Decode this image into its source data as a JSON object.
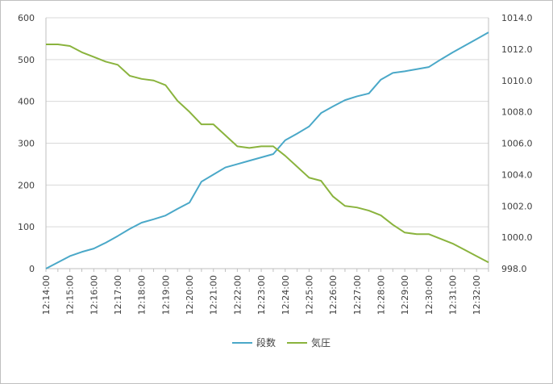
{
  "chart_data": {
    "type": "line",
    "x": [
      "12:14:00",
      "12:14:30",
      "12:15:00",
      "12:15:30",
      "12:16:00",
      "12:16:30",
      "12:17:00",
      "12:17:30",
      "12:18:00",
      "12:18:30",
      "12:19:00",
      "12:19:30",
      "12:20:00",
      "12:20:30",
      "12:21:00",
      "12:21:30",
      "12:22:00",
      "12:22:30",
      "12:23:00",
      "12:23:30",
      "12:24:00",
      "12:24:30",
      "12:25:00",
      "12:25:30",
      "12:26:00",
      "12:26:30",
      "12:27:00",
      "12:27:30",
      "12:28:00",
      "12:28:30",
      "12:29:00",
      "12:29:30",
      "12:30:00",
      "12:30:30",
      "12:31:00",
      "12:31:30",
      "12:32:00",
      "12:32:30"
    ],
    "x_tick_labels": [
      "12:14:00",
      "12:15:00",
      "12:16:00",
      "12:17:00",
      "12:18:00",
      "12:19:00",
      "12:20:00",
      "12:21:00",
      "12:22:00",
      "12:23:00",
      "12:24:00",
      "12:25:00",
      "12:26:00",
      "12:27:00",
      "12:28:00",
      "12:29:00",
      "12:30:00",
      "12:31:00",
      "12:32:00"
    ],
    "series": [
      {
        "name": "段数",
        "axis": "left",
        "color": "#4aa8c8",
        "values": [
          0,
          15,
          30,
          40,
          48,
          62,
          78,
          95,
          110,
          118,
          127,
          143,
          158,
          208,
          225,
          242,
          250,
          258,
          266,
          274,
          307,
          323,
          340,
          372,
          388,
          403,
          412,
          419,
          452,
          468,
          472,
          477,
          482,
          500,
          517,
          533,
          549,
          565
        ]
      },
      {
        "name": "気圧",
        "axis": "right",
        "color": "#8ab33d",
        "values": [
          1012.3,
          1012.3,
          1012.2,
          1011.8,
          1011.5,
          1011.2,
          1011.0,
          1010.3,
          1010.1,
          1010.0,
          1009.7,
          1008.7,
          1008.0,
          1007.2,
          1007.2,
          1006.5,
          1005.8,
          1005.7,
          1005.8,
          1005.8,
          1005.2,
          1004.5,
          1003.8,
          1003.6,
          1002.6,
          1002.0,
          1001.9,
          1001.7,
          1001.4,
          1000.8,
          1000.3,
          1000.2,
          1000.2,
          999.9,
          999.6,
          999.2,
          998.8,
          998.4
        ]
      }
    ],
    "y_left": {
      "min": 0,
      "max": 600,
      "ticks": [
        "0",
        "100",
        "200",
        "300",
        "400",
        "500",
        "600"
      ]
    },
    "y_right": {
      "min": 998,
      "max": 1014,
      "ticks": [
        "998.0",
        "1000.0",
        "1002.0",
        "1004.0",
        "1006.0",
        "1008.0",
        "1010.0",
        "1012.0",
        "1014.0"
      ]
    },
    "grid": "horizontal",
    "legend": "bottom"
  },
  "colors": {
    "gridline": "#d9d9d9",
    "axis": "#bfbfbf"
  }
}
